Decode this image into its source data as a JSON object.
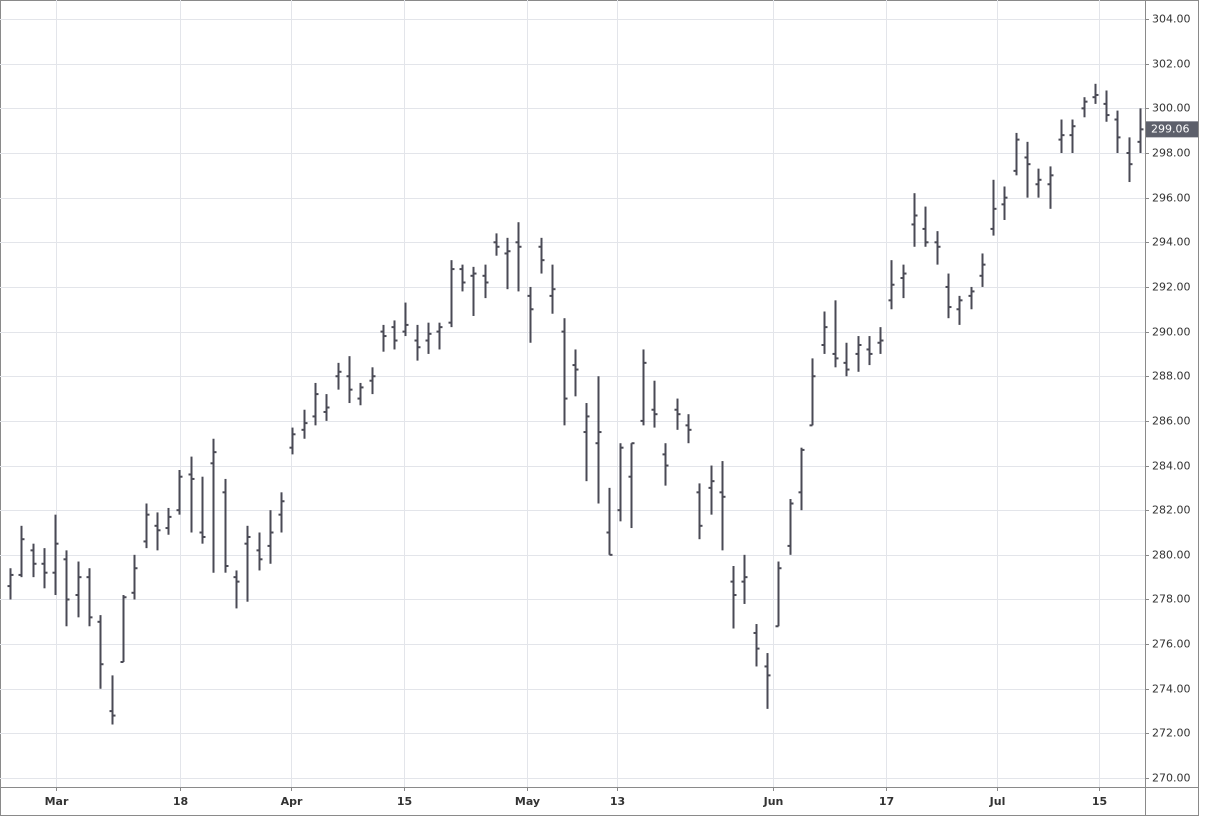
{
  "chart_data": {
    "type": "ohlc",
    "color": "#4a4a55",
    "grid": true,
    "last_price": 299.06,
    "ylim": [
      269.6,
      304.63
    ],
    "xlim": [
      -0.88,
      100.44
    ],
    "yticks": [
      {
        "value": 270,
        "label": "270.00"
      },
      {
        "value": 272,
        "label": "272.00"
      },
      {
        "value": 274,
        "label": "274.00"
      },
      {
        "value": 276,
        "label": "276.00"
      },
      {
        "value": 278,
        "label": "278.00"
      },
      {
        "value": 280,
        "label": "280.00"
      },
      {
        "value": 282,
        "label": "282.00"
      },
      {
        "value": 284,
        "label": "284.00"
      },
      {
        "value": 286,
        "label": "286.00"
      },
      {
        "value": 288,
        "label": "288.00"
      },
      {
        "value": 290,
        "label": "290.00"
      },
      {
        "value": 292,
        "label": "292.00"
      },
      {
        "value": 294,
        "label": "294.00"
      },
      {
        "value": 296,
        "label": "296.00"
      },
      {
        "value": 298,
        "label": "298.00"
      },
      {
        "value": 300,
        "label": "300.00"
      },
      {
        "value": 302,
        "label": "302.00"
      },
      {
        "value": 304,
        "label": "304.00"
      }
    ],
    "xticks": [
      {
        "value": 4.07,
        "label": "Mar"
      },
      {
        "value": 15.05,
        "label": "18"
      },
      {
        "value": 24.87,
        "label": "Apr"
      },
      {
        "value": 34.87,
        "label": "15"
      },
      {
        "value": 45.76,
        "label": "May"
      },
      {
        "value": 53.73,
        "label": "13"
      },
      {
        "value": 67.52,
        "label": "Jun"
      },
      {
        "value": 77.52,
        "label": "17"
      },
      {
        "value": 87.35,
        "label": "Jul"
      },
      {
        "value": 96.38,
        "label": "15"
      }
    ],
    "open": [
      278.6,
      279.1,
      280.2,
      279.6,
      279.2,
      279.8,
      278.2,
      279.0,
      277.0,
      273.0,
      275.2,
      278.3,
      280.6,
      281.3,
      281.2,
      282.0,
      283.6,
      281.0,
      284.1,
      282.8,
      279.0,
      280.5,
      280.2,
      280.4,
      281.8,
      284.8,
      285.6,
      286.2,
      286.4,
      288.0,
      288.0,
      287.0,
      287.8,
      290.0,
      290.2,
      290.0,
      289.6,
      289.6,
      290.0,
      290.4,
      292.8,
      292.5,
      292.5,
      294.0,
      293.5,
      294.0,
      291.6,
      293.8,
      291.6,
      290.0,
      288.5,
      285.5,
      285.0,
      281.0,
      282.0,
      283.5,
      286.0,
      286.5,
      284.5,
      286.5,
      285.8,
      282.8,
      283.0,
      282.8,
      278.8,
      278.8,
      276.5,
      275.0,
      276.8,
      280.4,
      282.8,
      285.8,
      289.4,
      289.0,
      288.6,
      289.0,
      289.2,
      289.5,
      291.4,
      292.4,
      294.8,
      294.6,
      294.0,
      292.0,
      291.0,
      291.6,
      292.5,
      294.6,
      295.7,
      297.2,
      297.8,
      296.6,
      296.6,
      298.6,
      298.8,
      300.0,
      300.5,
      300.2,
      299.5,
      298.0,
      298.5
    ],
    "high": [
      279.4,
      281.3,
      280.5,
      280.3,
      281.8,
      280.2,
      279.7,
      279.4,
      277.3,
      274.6,
      278.2,
      280.0,
      282.3,
      281.9,
      282.1,
      283.8,
      284.4,
      283.5,
      285.2,
      283.4,
      279.3,
      281.3,
      281.0,
      282.0,
      282.8,
      285.7,
      286.5,
      287.7,
      287.2,
      288.6,
      288.9,
      287.7,
      288.4,
      290.3,
      290.5,
      291.3,
      290.3,
      290.4,
      290.4,
      293.2,
      293.0,
      292.9,
      293.0,
      294.4,
      294.2,
      294.9,
      292.0,
      294.2,
      293.0,
      290.6,
      289.2,
      286.8,
      288.0,
      283.0,
      285.0,
      285.0,
      289.2,
      287.8,
      285.0,
      287.0,
      286.3,
      283.2,
      284.0,
      284.2,
      279.5,
      280.0,
      276.9,
      275.6,
      279.7,
      282.5,
      284.8,
      288.8,
      290.9,
      291.4,
      289.5,
      289.8,
      289.8,
      290.2,
      293.2,
      293.0,
      296.2,
      295.6,
      294.5,
      292.6,
      291.6,
      292.0,
      293.5,
      296.8,
      296.5,
      298.9,
      298.5,
      297.3,
      297.4,
      299.5,
      299.5,
      300.5,
      301.1,
      300.8,
      299.9,
      298.7,
      300.0
    ],
    "low": [
      278.0,
      279.0,
      279.0,
      278.5,
      278.2,
      276.8,
      277.2,
      276.8,
      274.0,
      272.4,
      275.2,
      278.0,
      280.3,
      280.2,
      280.9,
      281.8,
      281.0,
      280.5,
      279.2,
      279.2,
      277.6,
      277.9,
      279.3,
      279.6,
      281.0,
      284.5,
      285.2,
      285.8,
      286.0,
      287.4,
      286.8,
      286.7,
      287.2,
      289.1,
      289.2,
      289.8,
      288.7,
      289.0,
      289.2,
      290.2,
      291.8,
      290.7,
      291.5,
      293.4,
      291.9,
      291.8,
      289.5,
      292.6,
      290.8,
      285.8,
      287.1,
      283.3,
      282.3,
      280.0,
      281.5,
      281.2,
      285.8,
      285.7,
      283.1,
      285.6,
      285.0,
      280.7,
      281.8,
      280.2,
      276.7,
      277.8,
      275.0,
      273.1,
      276.8,
      280.0,
      282.0,
      285.8,
      289.0,
      288.4,
      288.0,
      288.2,
      288.5,
      289.0,
      291.0,
      291.5,
      293.8,
      293.8,
      293.0,
      290.6,
      290.3,
      291.0,
      292.0,
      294.3,
      295.0,
      297.0,
      296.0,
      296.0,
      295.5,
      298.0,
      298.0,
      299.6,
      300.2,
      299.4,
      298.0,
      296.7,
      298.0
    ],
    "close": [
      279.1,
      280.7,
      279.6,
      279.2,
      280.5,
      278.0,
      279.0,
      277.2,
      275.1,
      272.8,
      278.1,
      279.4,
      281.8,
      281.1,
      281.7,
      283.5,
      283.4,
      280.8,
      284.6,
      279.5,
      278.8,
      280.8,
      279.8,
      281.0,
      282.4,
      285.4,
      285.9,
      287.2,
      286.6,
      288.2,
      287.4,
      287.5,
      288.0,
      289.8,
      289.6,
      290.3,
      289.3,
      289.9,
      290.2,
      292.8,
      292.2,
      292.6,
      292.2,
      293.8,
      293.6,
      293.8,
      291.0,
      293.2,
      291.9,
      287.0,
      288.3,
      286.2,
      285.5,
      280.0,
      284.8,
      285.0,
      288.6,
      286.3,
      284.0,
      286.3,
      285.6,
      281.3,
      283.3,
      282.6,
      278.2,
      279.0,
      275.8,
      274.6,
      279.4,
      282.3,
      284.7,
      288.0,
      290.2,
      288.8,
      288.3,
      289.4,
      289.0,
      289.6,
      292.1,
      292.6,
      295.2,
      294.0,
      293.8,
      291.1,
      291.4,
      291.8,
      293.0,
      295.5,
      296.0,
      298.6,
      297.5,
      296.8,
      297.0,
      298.8,
      299.2,
      300.3,
      300.6,
      299.7,
      298.7,
      297.5,
      299.06
    ]
  }
}
